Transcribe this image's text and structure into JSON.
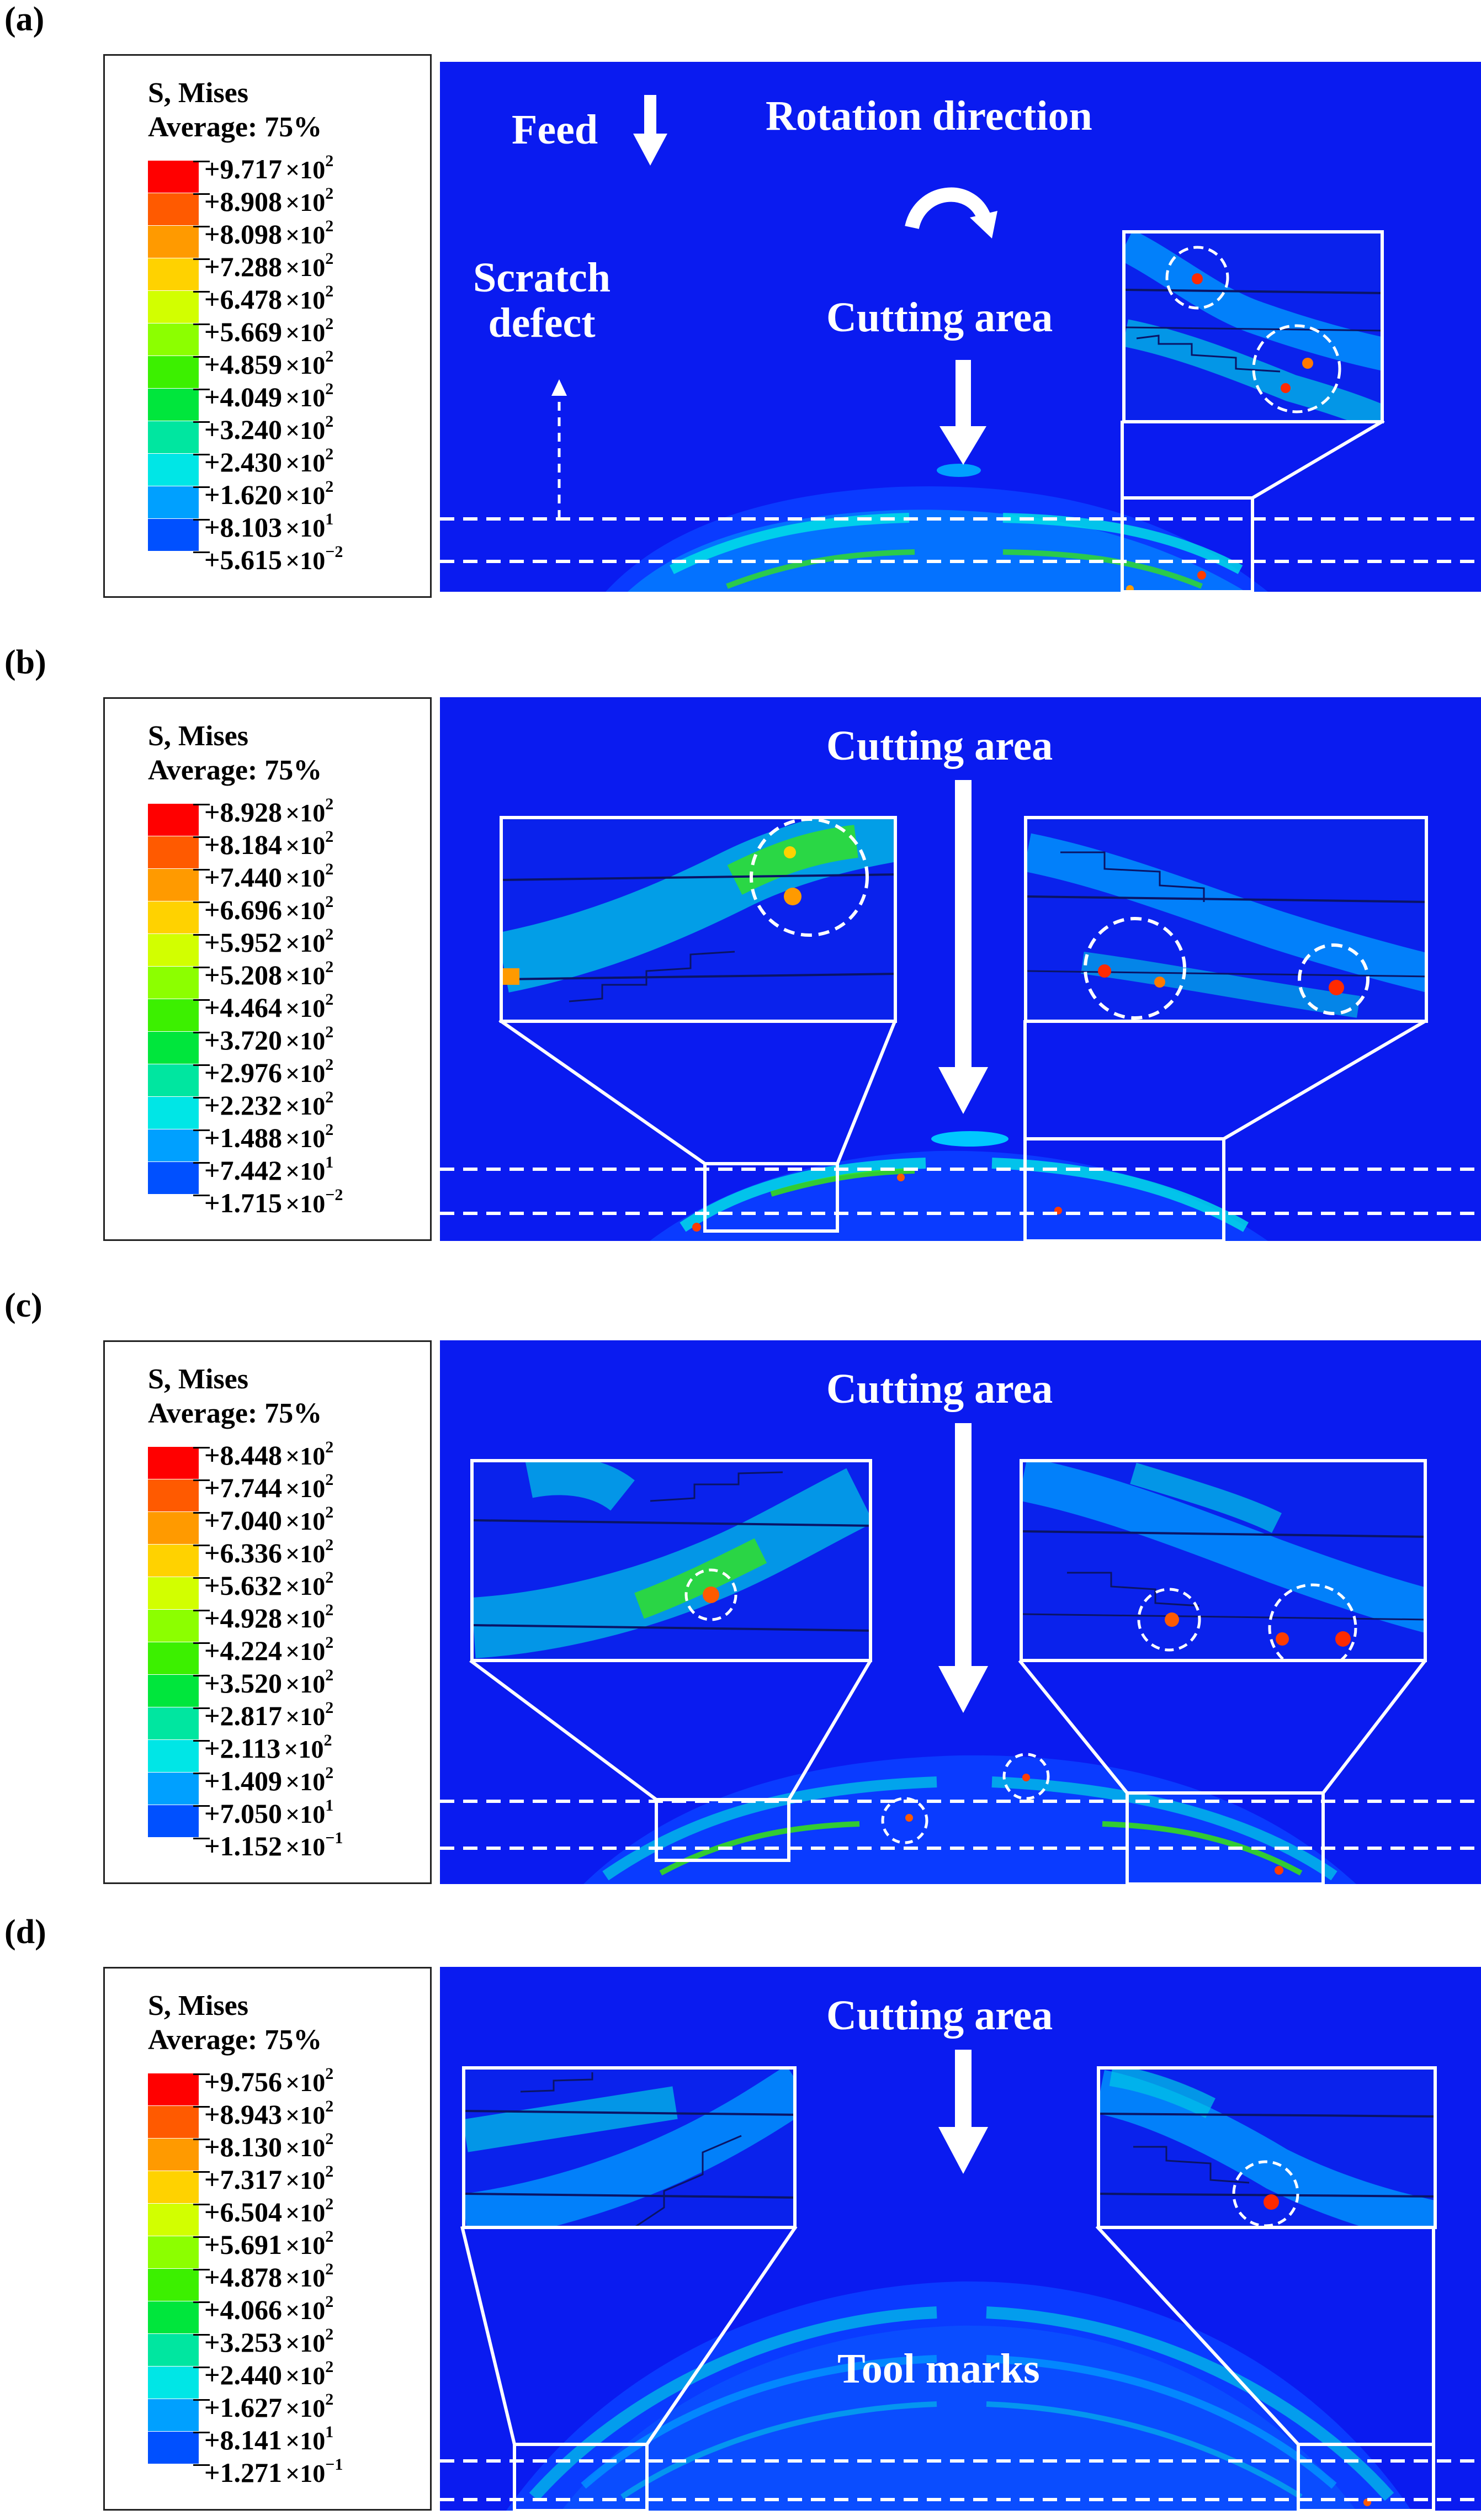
{
  "panels": [
    {
      "label": "(a)",
      "legend": {
        "title_line1": "S, Mises",
        "title_line2": "Average: 75%",
        "values": [
          "+9.717",
          "+8.908",
          "+8.098",
          "+7.288",
          "+6.478",
          "+5.669",
          "+4.859",
          "+4.049",
          "+3.240",
          "+2.430",
          "+1.620",
          "+8.103",
          "+5.615"
        ],
        "exponents": [
          "2",
          "2",
          "2",
          "2",
          "2",
          "2",
          "2",
          "2",
          "2",
          "2",
          "2",
          "1",
          "−2"
        ]
      },
      "annotations": {
        "feed": "Feed",
        "rotation": "Rotation direction",
        "scratch_line1": "Scratch",
        "scratch_line2": "defect",
        "cutting": "Cutting area"
      }
    },
    {
      "label": "(b)",
      "legend": {
        "title_line1": "S, Mises",
        "title_line2": "Average: 75%",
        "values": [
          "+8.928",
          "+8.184",
          "+7.440",
          "+6.696",
          "+5.952",
          "+5.208",
          "+4.464",
          "+3.720",
          "+2.976",
          "+2.232",
          "+1.488",
          "+7.442",
          "+1.715"
        ],
        "exponents": [
          "2",
          "2",
          "2",
          "2",
          "2",
          "2",
          "2",
          "2",
          "2",
          "2",
          "2",
          "1",
          "−2"
        ]
      },
      "annotations": {
        "cutting": "Cutting area"
      }
    },
    {
      "label": "(c)",
      "legend": {
        "title_line1": "S, Mises",
        "title_line2": "Average: 75%",
        "values": [
          "+8.448",
          "+7.744",
          "+7.040",
          "+6.336",
          "+5.632",
          "+4.928",
          "+4.224",
          "+3.520",
          "+2.817",
          "+2.113",
          "+1.409",
          "+7.050",
          "+1.152"
        ],
        "exponents": [
          "2",
          "2",
          "2",
          "2",
          "2",
          "2",
          "2",
          "2",
          "2",
          "2",
          "2",
          "1",
          "−1"
        ]
      },
      "annotations": {
        "cutting": "Cutting area"
      }
    },
    {
      "label": "(d)",
      "legend": {
        "title_line1": "S, Mises",
        "title_line2": "Average: 75%",
        "values": [
          "+9.756",
          "+8.943",
          "+8.130",
          "+7.317",
          "+6.504",
          "+5.691",
          "+4.878",
          "+4.066",
          "+3.253",
          "+2.440",
          "+1.627",
          "+8.141",
          "+1.271"
        ],
        "exponents": [
          "2",
          "2",
          "2",
          "2",
          "2",
          "2",
          "2",
          "2",
          "2",
          "2",
          "2",
          "1",
          "−1"
        ]
      },
      "annotations": {
        "cutting": "Cutting area",
        "tool_marks": "Tool marks"
      }
    }
  ],
  "multiplier": "×10",
  "colormap": [
    "#ff0000",
    "#ff5a00",
    "#ff9a00",
    "#ffd200",
    "#d2ff00",
    "#8cff00",
    "#3cf000",
    "#00e63c",
    "#00e6a0",
    "#00e6e6",
    "#00a0ff",
    "#0050ff",
    "#0000ff"
  ]
}
